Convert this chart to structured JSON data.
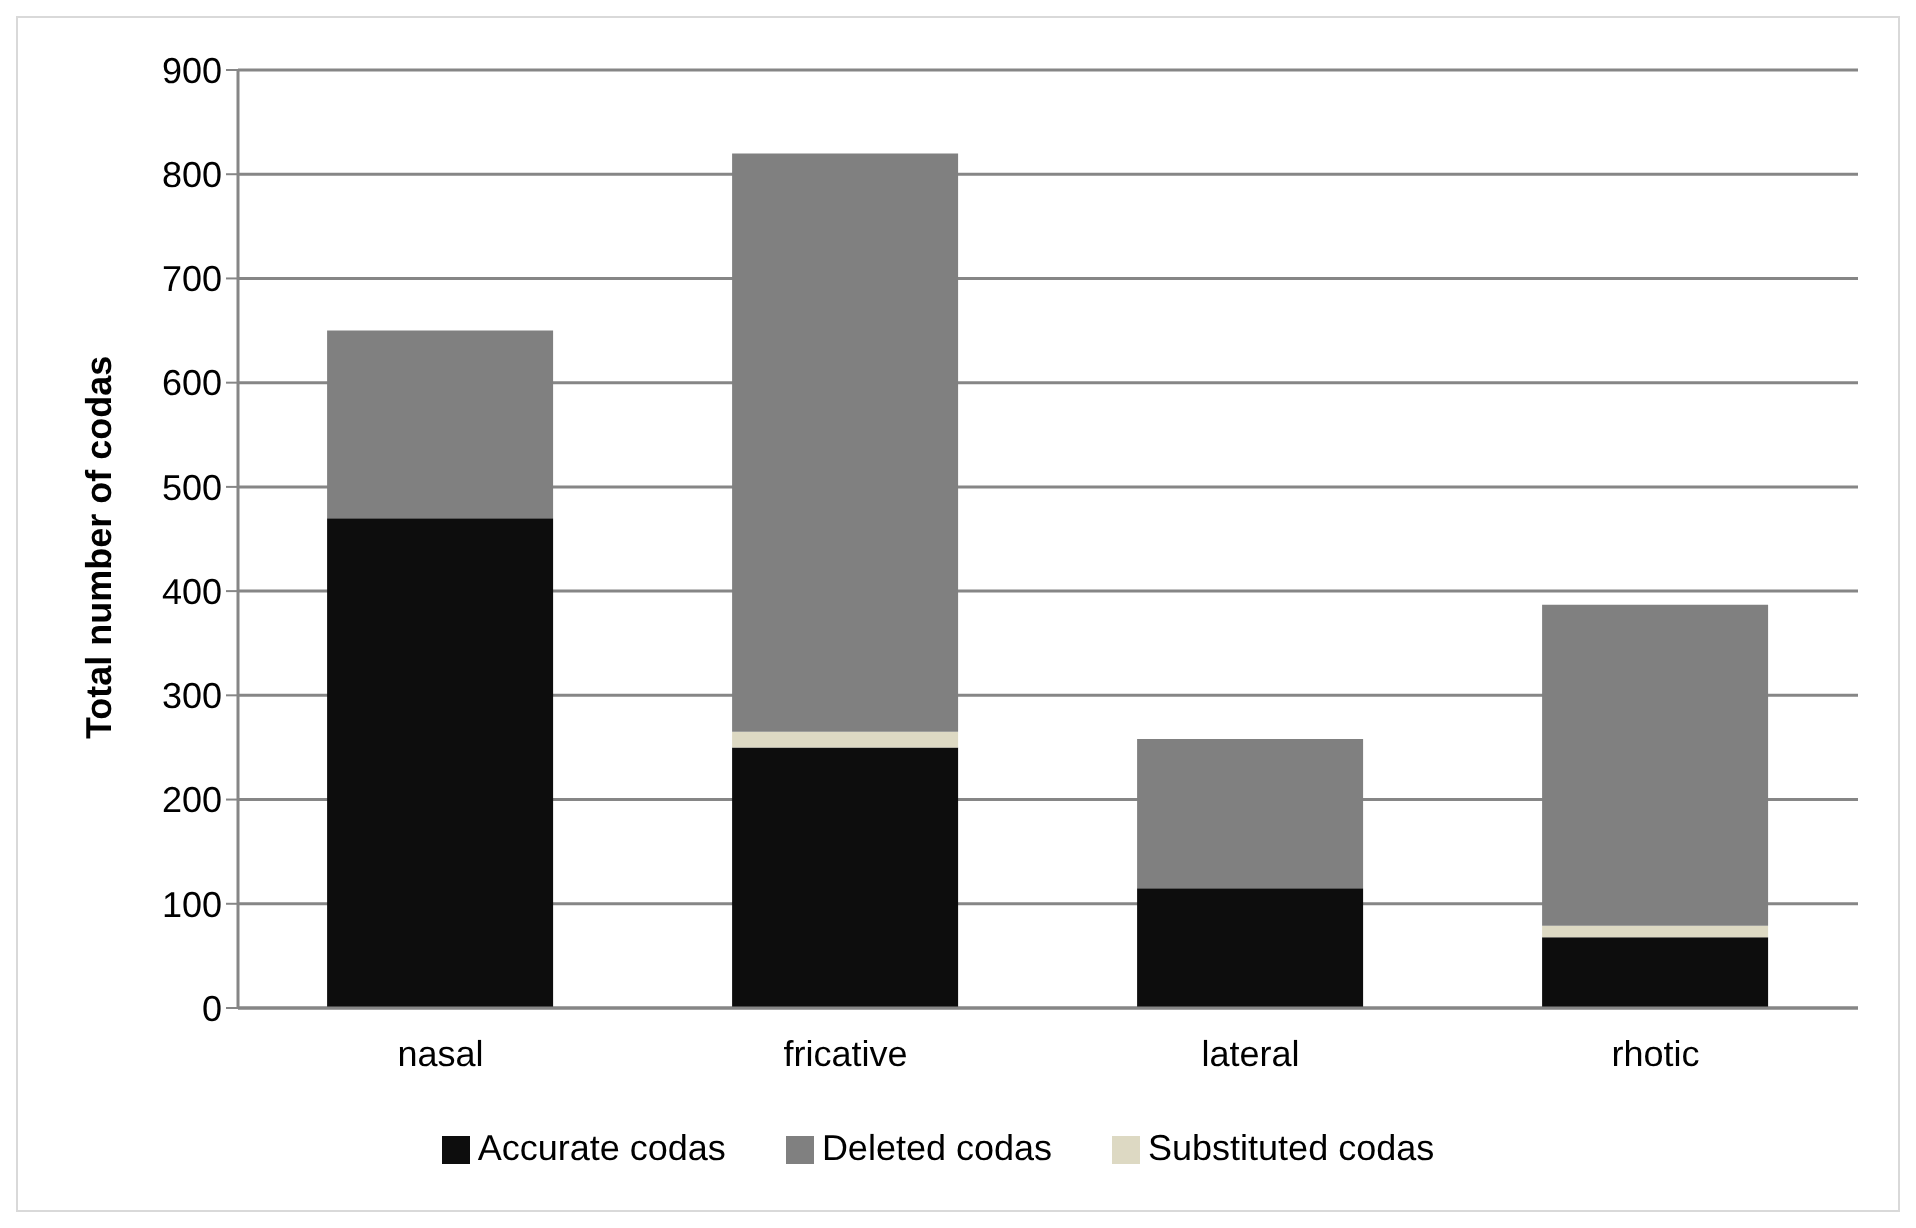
{
  "chart_data": {
    "type": "bar",
    "ylabel": "Total number of codas",
    "categories": [
      "nasal",
      "fricative",
      "lateral",
      "rhotic"
    ],
    "stacked": true,
    "series": [
      {
        "name": "Accurate codas",
        "color": "#0d0d0d",
        "values": [
          470,
          250,
          115,
          68
        ]
      },
      {
        "name": "Substituted codas",
        "color": "#ddd9c3",
        "values": [
          0,
          15,
          0,
          11
        ]
      },
      {
        "name": "Deleted codas",
        "color": "#808080",
        "values": [
          180,
          555,
          143,
          308
        ]
      }
    ],
    "ylim": [
      0,
      900
    ],
    "yticks": [
      0,
      100,
      200,
      300,
      400,
      500,
      600,
      700,
      800,
      900
    ],
    "grid": "y",
    "legend": "bottom"
  }
}
